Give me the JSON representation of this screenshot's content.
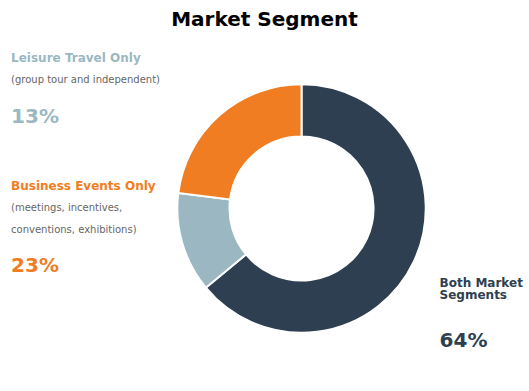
{
  "chart_data": {
    "type": "donut",
    "title": "Market Segment",
    "categories": [
      "Both Market Segments",
      "Leisure Travel Only",
      "Business Events Only"
    ],
    "values": [
      64,
      13,
      23
    ],
    "value_labels": [
      "64%",
      "13%",
      "23%"
    ],
    "colors": [
      "#2d3f50",
      "#9bb8c2",
      "#f07d22"
    ],
    "annotations": [
      {
        "text": "(group tour and independent)",
        "category": "Leisure Travel Only"
      },
      {
        "text": "(meetings, incentives,",
        "category": "Business Events Only"
      },
      {
        "text": "conventions, exhibitions)",
        "category": "Business Events Only"
      }
    ]
  }
}
